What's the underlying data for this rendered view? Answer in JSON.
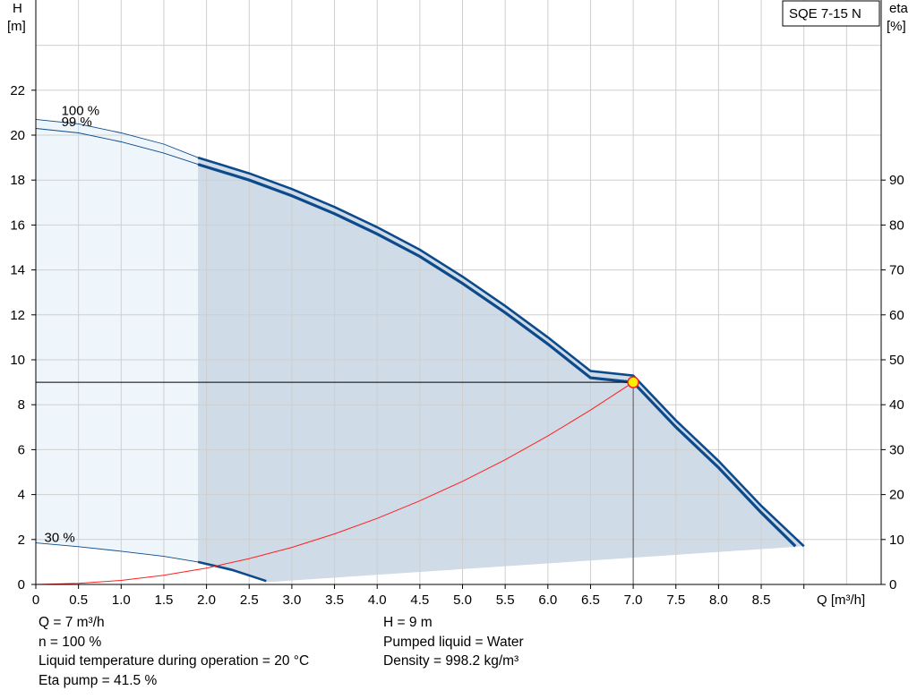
{
  "chart_data": {
    "type": "line",
    "title": "SQE 7-15 N",
    "xlabel": "Q [m³/h]",
    "ylabel_left": [
      "H",
      "[m]"
    ],
    "ylabel_right": [
      "eta",
      "[%]"
    ],
    "x_ticks": [
      "0",
      "0.5",
      "1.0",
      "1.5",
      "2.0",
      "2.5",
      "3.0",
      "3.5",
      "4.0",
      "4.5",
      "5.0",
      "5.5",
      "6.0",
      "6.5",
      "7.0",
      "7.5",
      "8.0",
      "8.5"
    ],
    "x_tick_values": [
      0,
      0.5,
      1.0,
      1.5,
      2.0,
      2.5,
      3.0,
      3.5,
      4.0,
      4.5,
      5.0,
      5.5,
      6.0,
      6.5,
      7.0,
      7.5,
      8.0,
      8.5
    ],
    "xlim": [
      0,
      9.5
    ],
    "y_left_ticks": [
      0,
      2,
      4,
      6,
      8,
      10,
      12,
      14,
      16,
      18,
      20,
      22
    ],
    "ylim_left": [
      0,
      26
    ],
    "y_right_ticks": [
      0,
      10,
      20,
      30,
      40,
      50,
      60,
      70,
      80,
      90
    ],
    "ylim_right": [
      0,
      130
    ],
    "grid": true,
    "series": [
      {
        "name": "100 %",
        "color": "#0c4a8c",
        "x": [
          0,
          0.5,
          1.0,
          1.5,
          1.9,
          2.5,
          3.0,
          3.5,
          4.0,
          4.5,
          5.0,
          5.5,
          6.0,
          6.5,
          7.0,
          7.5,
          8.0,
          8.5,
          9.0
        ],
        "y": [
          20.7,
          20.5,
          20.1,
          19.6,
          19.0,
          18.3,
          17.6,
          16.8,
          15.9,
          14.9,
          13.7,
          12.4,
          11.0,
          9.5,
          9.3,
          7.3,
          5.5,
          3.5,
          1.7
        ]
      },
      {
        "name": "99 %",
        "color": "#0c4a8c",
        "x": [
          0,
          0.5,
          1.0,
          1.5,
          1.9,
          2.5,
          3.0,
          3.5,
          4.0,
          4.5,
          5.0,
          5.5,
          6.0,
          6.5,
          7.0,
          7.5,
          8.0,
          8.5,
          8.9
        ],
        "y": [
          20.3,
          20.1,
          19.7,
          19.2,
          18.7,
          18.0,
          17.3,
          16.5,
          15.6,
          14.6,
          13.4,
          12.1,
          10.7,
          9.2,
          9.0,
          7.0,
          5.2,
          3.2,
          1.7
        ]
      },
      {
        "name": "30 %",
        "color": "#0c4a8c",
        "x": [
          0,
          0.5,
          1.0,
          1.5,
          1.9,
          2.3,
          2.7
        ],
        "y": [
          1.85,
          1.68,
          1.48,
          1.25,
          1.0,
          0.65,
          0.15
        ]
      },
      {
        "name": "system curve",
        "color": "#ff2020",
        "x": [
          0,
          0.5,
          1.0,
          1.5,
          2.0,
          2.5,
          3.0,
          3.5,
          4.0,
          4.5,
          5.0,
          5.5,
          6.0,
          6.5,
          7.0
        ],
        "y": [
          0,
          0.05,
          0.18,
          0.41,
          0.73,
          1.15,
          1.65,
          2.25,
          2.94,
          3.72,
          4.59,
          5.55,
          6.61,
          7.76,
          9.0
        ]
      }
    ],
    "duty_point": {
      "q": 7.0,
      "h": 9.0
    },
    "annotations": [
      {
        "text": "100 %",
        "x": 0.3,
        "y": 20.9
      },
      {
        "text": "99 %",
        "x": 0.3,
        "y": 20.4
      },
      {
        "text": "30 %",
        "x": 0.1,
        "y": 1.9
      }
    ]
  },
  "operating_info": {
    "left": [
      "Q = 7 m³/h",
      "n = 100 %",
      "Liquid temperature during operation = 20 °C",
      "Eta pump = 41.5 %"
    ],
    "right": [
      "H = 9 m",
      "Pumped liquid = Water",
      "Density = 998.2 kg/m³"
    ]
  },
  "colors": {
    "grid": "#cfcfcf",
    "curve": "#0c4a8c",
    "region_fill": "#cfdbe6",
    "low_region_fill": "#eef5fb",
    "system_curve": "#ff2020",
    "duty_point": "#ffee00"
  }
}
